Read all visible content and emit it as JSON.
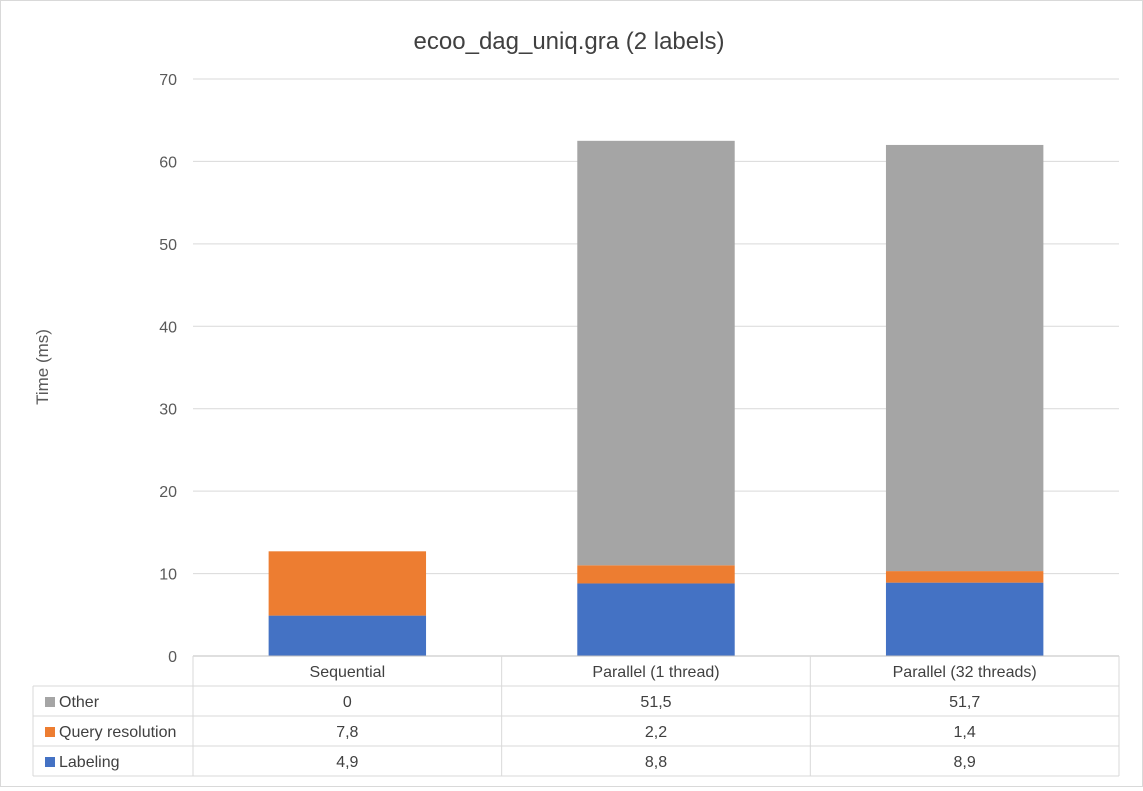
{
  "chart_data": {
    "type": "bar",
    "stacked": true,
    "title": "ecoo_dag_uniq.gra  (2 labels)",
    "xlabel": "",
    "ylabel": "Time (ms)",
    "ylim": [
      0,
      70
    ],
    "yticks": [
      0,
      10,
      20,
      30,
      40,
      50,
      60,
      70
    ],
    "grid": true,
    "categories": [
      "Sequential",
      "Parallel (1 thread)",
      "Parallel (32 threads)"
    ],
    "series": [
      {
        "name": "Labeling",
        "values": [
          4.9,
          8.8,
          8.9
        ],
        "labels": [
          "4,9",
          "8,8",
          "8,9"
        ],
        "color": "#4472C4"
      },
      {
        "name": "Query resolution",
        "values": [
          7.8,
          2.2,
          1.4
        ],
        "labels": [
          "7,8",
          "2,2",
          "1,4"
        ],
        "color": "#ED7D31"
      },
      {
        "name": "Other",
        "values": [
          0,
          51.5,
          51.7
        ],
        "labels": [
          "0",
          "51,5",
          "51,7"
        ],
        "color": "#A5A5A5"
      }
    ],
    "legend": "data-table",
    "table_row_order": [
      "Other",
      "Query resolution",
      "Labeling"
    ]
  }
}
